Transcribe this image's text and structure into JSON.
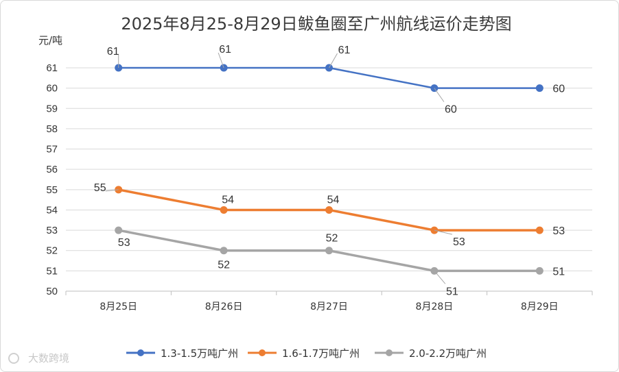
{
  "watermark": "大数跨境",
  "chart_data": {
    "type": "line",
    "title": "2025年8月25-8月29日鲅鱼圈至广州航线运价走势图",
    "ylabel": "元/吨",
    "xlabel": "",
    "categories": [
      "8月25日",
      "8月26日",
      "8月27日",
      "8月28日",
      "8月29日"
    ],
    "ylim": [
      50,
      61
    ],
    "yticks": [
      50,
      51,
      52,
      53,
      54,
      55,
      56,
      57,
      58,
      59,
      60,
      61
    ],
    "grid": true,
    "legend_position": "bottom",
    "series": [
      {
        "name": "1.3-1.5万吨广州",
        "color": "#4472C4",
        "values": [
          61,
          61,
          61,
          60,
          60
        ]
      },
      {
        "name": "1.6-1.7万吨广州",
        "color": "#ED7D31",
        "values": [
          55,
          54,
          54,
          53,
          53
        ]
      },
      {
        "name": "2.0-2.2万吨广州",
        "color": "#A5A5A5",
        "values": [
          53,
          52,
          52,
          51,
          51
        ]
      }
    ]
  }
}
